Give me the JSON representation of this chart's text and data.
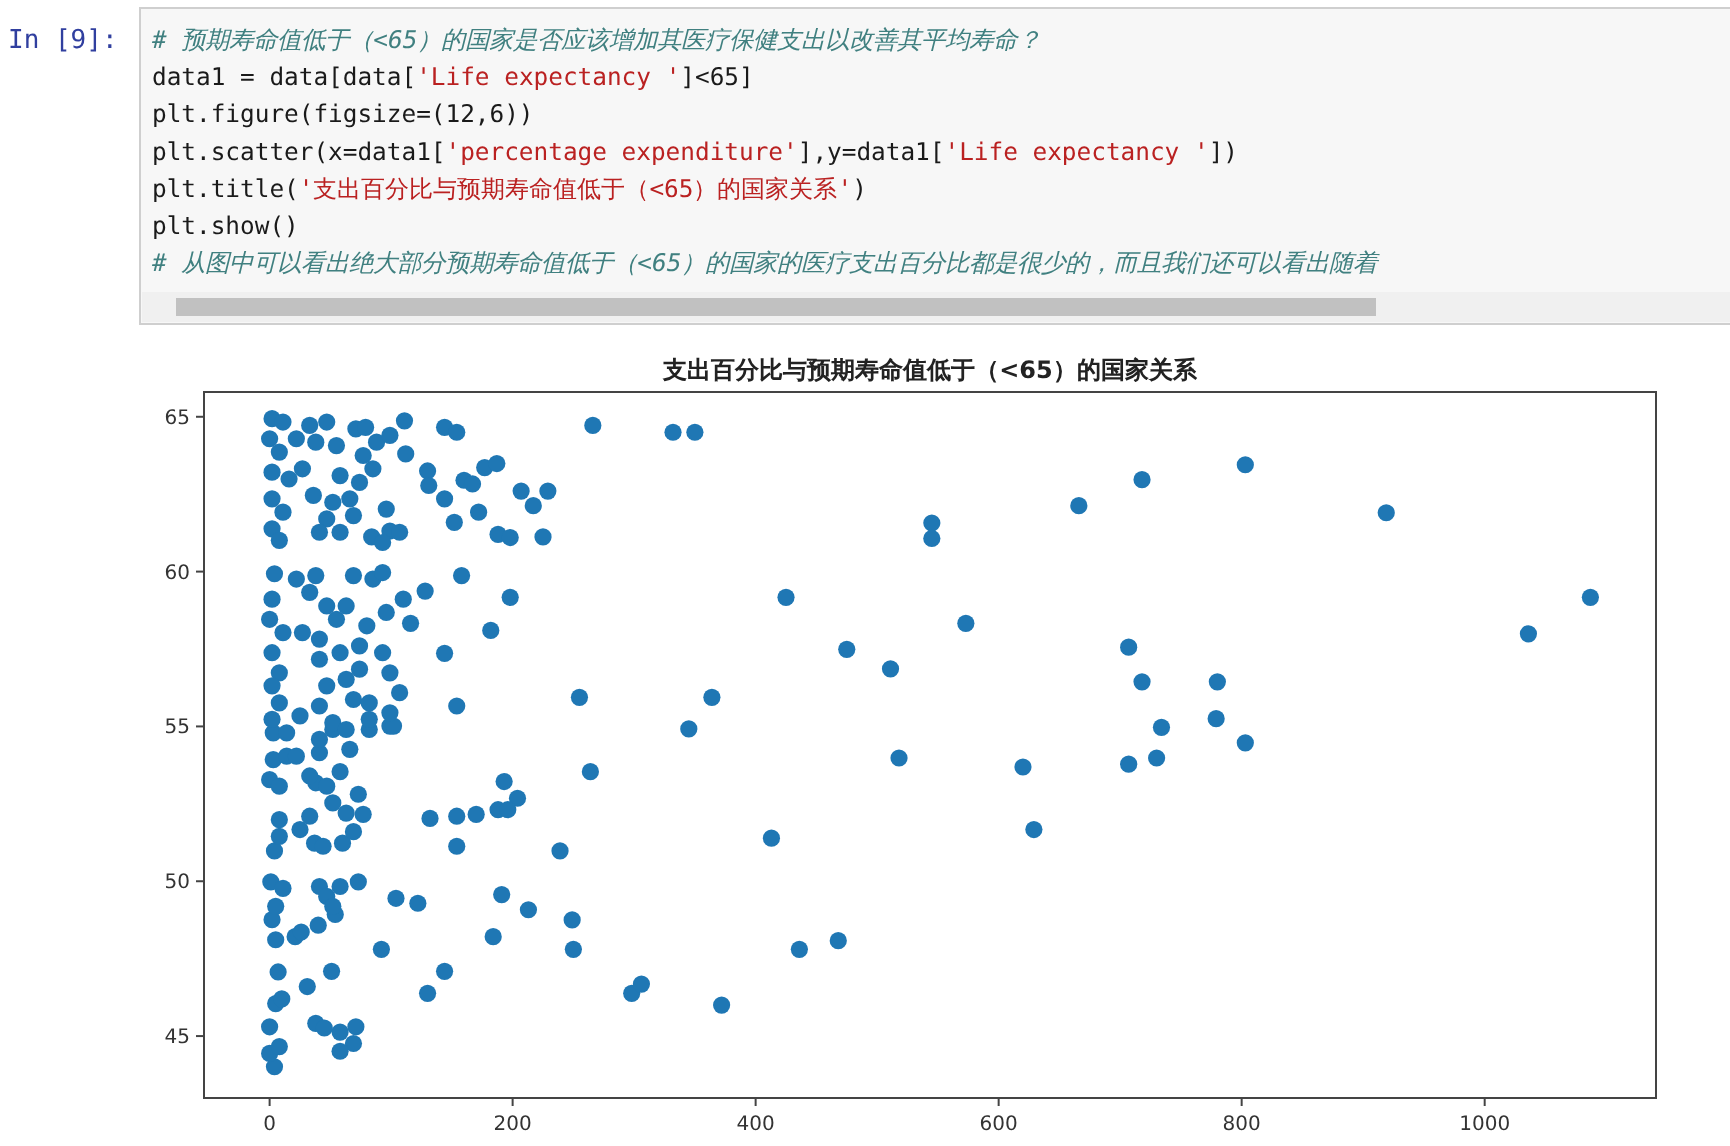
{
  "chart_data": {
    "type": "scatter",
    "title": "支出百分比与预期寿命值低于（<65）的国家关系",
    "annotations": [
      "In [9]:",
      "# 预期寿命值低于（<65）的国家是否应该增加其医疗保健支出以改善其平均寿命？",
      "data1 = data[data['Life expectancy ']<65]",
      "plt.figure(figsize=(12,6))",
      "plt.scatter(x=data1['percentage expenditure'],y=data1['Life expectancy '])",
      "plt.title('支出百分比与预期寿命值低于（<65）的国家关系')",
      "plt.show()",
      "# 从图中可以看出绝大部分预期寿命值低于（<65）的国家的医疗支出百分比都是很少的，而且我们还可以看出随着"
    ],
    "color": "#1f77b4",
    "marker": "circle",
    "xlim": [
      -54,
      1141
    ],
    "ylim": [
      43.0,
      65.8
    ],
    "xticks": [
      0,
      200,
      400,
      600,
      800,
      1000
    ],
    "yticks": [
      45,
      50,
      55,
      60,
      65
    ],
    "x": [
      803,
      718,
      666,
      919,
      545,
      545,
      425,
      1087,
      573,
      1036,
      475,
      511,
      707,
      718,
      780,
      734,
      779,
      803,
      518,
      620,
      707,
      730,
      629,
      413,
      436,
      468,
      266,
      332,
      350,
      111,
      144,
      154,
      112,
      130,
      131,
      177,
      187,
      160,
      167,
      207,
      229,
      217,
      172,
      144,
      152,
      188,
      198,
      225,
      99,
      158,
      198,
      128,
      116,
      182,
      144,
      154,
      255,
      364,
      345,
      264,
      193,
      204,
      188,
      196,
      132,
      154,
      170,
      154,
      239,
      104,
      122,
      191,
      213,
      249,
      184,
      250,
      92,
      144,
      130,
      298,
      306,
      372,
      51,
      31,
      38,
      45,
      58,
      71,
      69,
      58,
      7,
      4,
      0,
      8,
      0,
      5,
      10,
      2,
      5,
      5,
      1,
      11,
      21,
      26,
      40,
      54,
      41,
      47,
      58,
      73,
      52,
      4,
      8,
      8,
      25,
      37,
      44,
      60,
      69,
      33,
      52,
      63,
      73,
      77,
      38,
      33,
      58,
      47,
      0,
      8,
      3,
      14,
      22,
      41,
      66,
      41,
      52,
      82,
      99,
      3,
      14,
      2,
      11,
      0,
      8,
      2,
      16,
      2,
      11,
      2,
      8,
      22,
      33,
      47,
      38,
      55,
      71,
      79,
      88,
      99,
      27,
      58,
      74,
      85,
      77,
      36,
      52,
      66,
      96,
      47,
      41,
      58,
      69,
      84,
      93,
      107,
      4,
      22,
      2,
      0,
      11,
      2,
      8,
      2,
      8,
      2,
      38,
      33,
      47,
      27,
      41,
      55,
      63,
      69,
      85,
      93,
      96,
      110,
      80,
      74,
      93,
      58,
      41,
      99,
      63,
      74,
      107,
      69,
      47,
      41,
      52,
      82,
      82,
      102,
      25,
      63,
      99
    ],
    "values": [
      63.45,
      62.97,
      62.13,
      61.9,
      61.57,
      61.07,
      59.17,
      59.17,
      58.33,
      57.99,
      57.49,
      56.86,
      57.56,
      56.44,
      56.44,
      54.97,
      55.25,
      54.47,
      53.98,
      53.69,
      53.78,
      53.98,
      51.67,
      51.39,
      47.8,
      48.08,
      64.72,
      64.5,
      64.5,
      64.87,
      64.66,
      64.5,
      63.8,
      63.25,
      62.78,
      63.36,
      63.49,
      62.95,
      62.83,
      62.6,
      62.6,
      62.13,
      61.92,
      62.35,
      61.59,
      61.2,
      61.1,
      61.12,
      61.31,
      59.87,
      59.17,
      59.37,
      58.33,
      58.1,
      57.36,
      55.66,
      55.94,
      55.94,
      54.92,
      53.54,
      53.22,
      52.68,
      52.31,
      52.31,
      52.03,
      52.1,
      52.16,
      51.13,
      50.98,
      49.45,
      49.29,
      49.57,
      49.08,
      48.75,
      48.21,
      47.8,
      47.8,
      47.09,
      46.38,
      46.38,
      46.68,
      46.0,
      47.09,
      46.6,
      45.41,
      45.26,
      45.13,
      45.3,
      44.76,
      44.51,
      47.07,
      44.01,
      44.44,
      44.66,
      45.3,
      46.05,
      46.2,
      48.76,
      48.11,
      49.19,
      49.98,
      49.77,
      48.21,
      48.36,
      48.58,
      48.93,
      49.83,
      49.51,
      49.83,
      49.98,
      49.19,
      50.98,
      51.99,
      51.45,
      51.67,
      51.23,
      51.13,
      51.23,
      51.6,
      52.1,
      52.53,
      52.2,
      52.81,
      52.16,
      53.18,
      53.4,
      53.54,
      53.07,
      53.28,
      53.07,
      53.93,
      54.04,
      54.04,
      54.15,
      54.26,
      54.58,
      54.9,
      54.9,
      55.01,
      54.79,
      54.79,
      64.94,
      64.83,
      64.29,
      63.86,
      63.21,
      62.99,
      62.35,
      61.92,
      61.38,
      61.01,
      64.29,
      64.72,
      64.83,
      64.18,
      64.07,
      64.61,
      64.66,
      64.18,
      64.4,
      63.32,
      63.1,
      62.88,
      63.32,
      63.75,
      62.46,
      62.24,
      62.35,
      62.02,
      61.7,
      61.27,
      61.27,
      61.81,
      61.12,
      60.94,
      61.27,
      59.93,
      59.76,
      59.11,
      58.46,
      58.03,
      57.38,
      56.73,
      56.31,
      55.76,
      55.23,
      59.87,
      59.33,
      58.89,
      58.03,
      57.82,
      58.46,
      58.89,
      59.87,
      59.76,
      59.97,
      58.68,
      59.11,
      58.25,
      57.6,
      57.38,
      57.38,
      57.17,
      56.73,
      56.52,
      56.85,
      56.09,
      55.87,
      56.31,
      55.66,
      55.12,
      55.76,
      55.23,
      55.01,
      55.34,
      54.9,
      55.44
    ]
  }
}
